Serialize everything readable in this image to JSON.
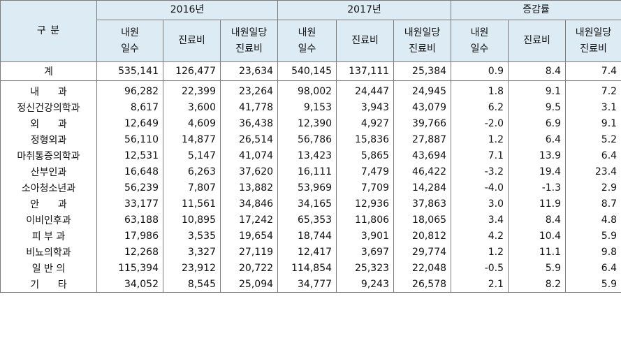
{
  "header": {
    "category": "구 분",
    "groups": [
      "2016년",
      "2017년",
      "증감률"
    ],
    "sub_columns": [
      [
        "내원",
        "일수"
      ],
      [
        "진료비"
      ],
      [
        "내원일당",
        "진료비"
      ]
    ]
  },
  "rows": [
    {
      "label": "계",
      "values": [
        "535,141",
        "126,477",
        "23,634",
        "540,145",
        "137,111",
        "25,384",
        "0.9",
        "8.4",
        "7.4"
      ]
    },
    {
      "label": "내      과",
      "values": [
        "96,282",
        "22,399",
        "23,264",
        "98,002",
        "24,447",
        "24,945",
        "1.8",
        "9.1",
        "7.2"
      ]
    },
    {
      "label": "정신건강의학과",
      "values": [
        "8,617",
        "3,600",
        "41,778",
        "9,153",
        "3,943",
        "43,079",
        "6.2",
        "9.5",
        "3.1"
      ]
    },
    {
      "label": "외      과",
      "values": [
        "12,649",
        "4,609",
        "36,438",
        "12,390",
        "4,927",
        "39,766",
        "-2.0",
        "6.9",
        "9.1"
      ]
    },
    {
      "label": "정형외과",
      "values": [
        "56,110",
        "14,877",
        "26,514",
        "56,786",
        "15,836",
        "27,887",
        "1.2",
        "6.4",
        "5.2"
      ]
    },
    {
      "label": "마취통증의학과",
      "values": [
        "12,531",
        "5,147",
        "41,074",
        "13,423",
        "5,865",
        "43,694",
        "7.1",
        "13.9",
        "6.4"
      ]
    },
    {
      "label": "산부인과",
      "values": [
        "16,648",
        "6,263",
        "37,620",
        "16,111",
        "7,479",
        "46,422",
        "-3.2",
        "19.4",
        "23.4"
      ]
    },
    {
      "label": "소아청소년과",
      "values": [
        "56,239",
        "7,807",
        "13,882",
        "53,969",
        "7,709",
        "14,284",
        "-4.0",
        "-1.3",
        "2.9"
      ]
    },
    {
      "label": "안      과",
      "values": [
        "33,177",
        "11,561",
        "34,846",
        "34,165",
        "12,936",
        "37,863",
        "3.0",
        "11.9",
        "8.7"
      ]
    },
    {
      "label": "이비인후과",
      "values": [
        "63,188",
        "10,895",
        "17,242",
        "65,353",
        "11,806",
        "18,065",
        "3.4",
        "8.4",
        "4.8"
      ]
    },
    {
      "label": "피 부 과",
      "values": [
        "17,986",
        "3,535",
        "19,654",
        "18,744",
        "3,901",
        "20,812",
        "4.2",
        "10.4",
        "5.9"
      ]
    },
    {
      "label": "비뇨의학과",
      "values": [
        "12,268",
        "3,327",
        "27,119",
        "12,417",
        "3,697",
        "29,774",
        "1.2",
        "11.1",
        "9.8"
      ]
    },
    {
      "label": "일 반 의",
      "values": [
        "115,394",
        "23,912",
        "20,722",
        "114,854",
        "25,323",
        "22,048",
        "-0.5",
        "5.9",
        "6.4"
      ]
    },
    {
      "label": "기      타",
      "values": [
        "34,052",
        "8,545",
        "25,094",
        "34,777",
        "9,243",
        "26,578",
        "2.1",
        "8.2",
        "5.9"
      ]
    }
  ]
}
